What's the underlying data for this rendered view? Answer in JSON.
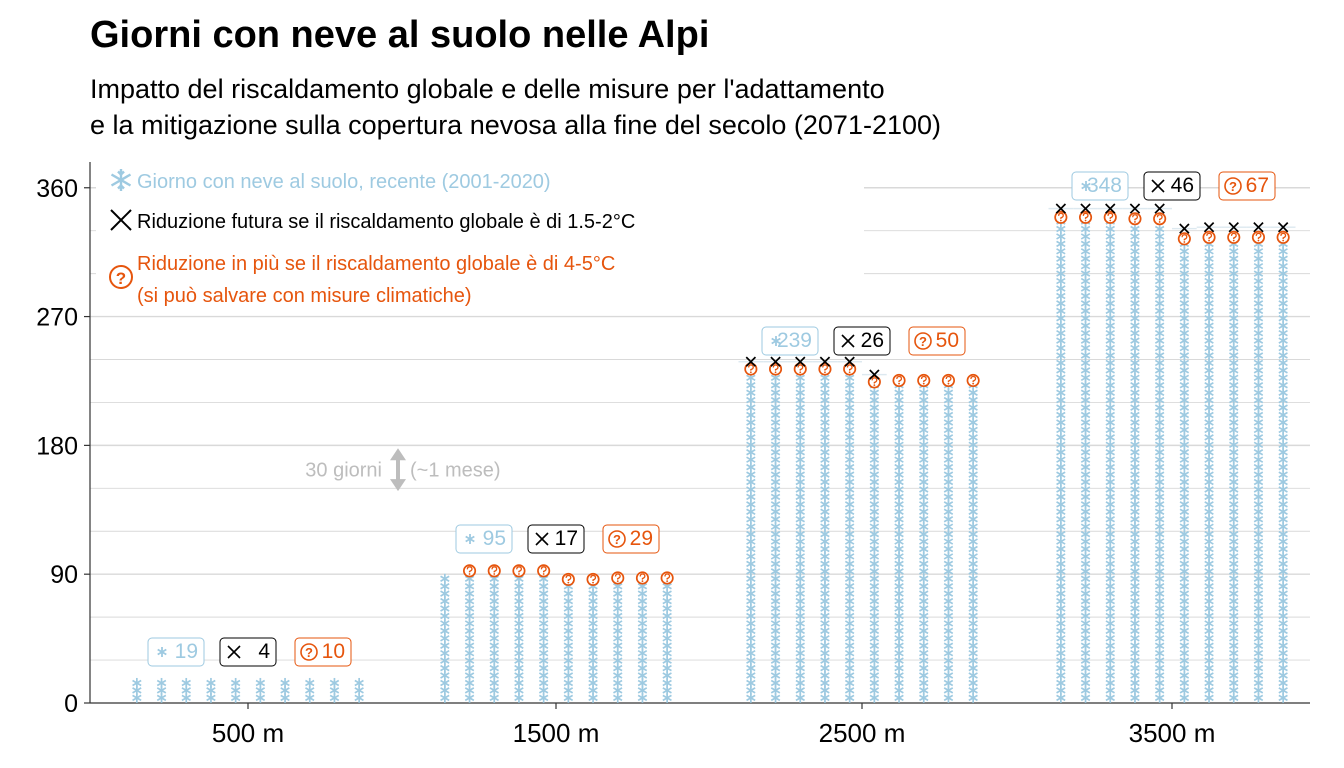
{
  "title": "Giorni con neve al suolo nelle Alpi",
  "subtitle_lines": [
    "Impatto del riscaldamento globale e delle misure per l'adattamento",
    "e la mitigazione sulla copertura nevosa alla fine del secolo (2071-2100)"
  ],
  "colors": {
    "snow": "#9ecae1",
    "reduction": "#000000",
    "mitigable": "#e6550d",
    "grid": "#d9d9d9",
    "annotation": "#bdbdbd"
  },
  "icons": {
    "snow": "snowflake-icon",
    "reduction": "cross-icon",
    "mitigable": "question-circle-icon",
    "scale": "double-arrow-icon"
  },
  "chart_data": {
    "type": "waffle",
    "ylim": [
      0,
      378
    ],
    "yticks": [
      0,
      90,
      180,
      270,
      360
    ],
    "categories": [
      "500 m",
      "1500 m",
      "2500 m",
      "3500 m"
    ],
    "legend": {
      "placement": "top-left",
      "items": [
        {
          "key": "snow",
          "label": "Giorno con neve al suolo, recente (2001-2020)"
        },
        {
          "key": "reduction",
          "label": "Riduzione futura se il riscaldamento globale è di 1.5-2°C"
        },
        {
          "key": "mitigable",
          "label": "Riduzione in più se il riscaldamento globale è di 4-5°C",
          "label2": "(si può salvare con misure climatiche)"
        }
      ]
    },
    "scale_annotation": {
      "label": "30 giorni",
      "label2": "(~1 mese)",
      "days": 30
    },
    "series": [
      {
        "key": "snow",
        "values": [
          19,
          95,
          239,
          348
        ]
      },
      {
        "key": "reduction",
        "values": [
          4,
          17,
          26,
          46
        ]
      },
      {
        "key": "mitigable",
        "values": [
          10,
          29,
          50,
          67
        ]
      }
    ],
    "value_labels": {
      "snow": [
        "19",
        "95",
        "239",
        "348"
      ],
      "reduction": [
        "4",
        "17",
        "26",
        "46"
      ],
      "mitigable": [
        "10",
        "29",
        "50",
        "67"
      ]
    }
  }
}
